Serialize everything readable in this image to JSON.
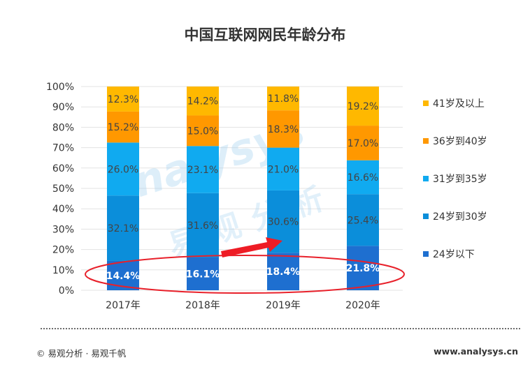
{
  "title": "中国互联网网民年龄分布",
  "footer": {
    "left": "© 易观分析 · 易观千帆",
    "right": "www.analysys.cn"
  },
  "watermark": "analysys 易观分析",
  "colors": {
    "24岁以下": "#1E6FD0",
    "24岁到30岁": "#0B8EDA",
    "31岁到35岁": "#10AAF0",
    "36岁到40岁": "#FF9800",
    "41岁及以上": "#FFB800",
    "highlight_ellipse": "#E8202A",
    "arrow": "#EE1C25"
  },
  "chart_data": {
    "type": "bar",
    "stacked": true,
    "title": "中国互联网网民年龄分布",
    "categories": [
      "2017年",
      "2018年",
      "2019年",
      "2020年"
    ],
    "ylim": [
      0,
      100
    ],
    "yticks": [
      "0%",
      "10%",
      "20%",
      "30%",
      "40%",
      "50%",
      "60%",
      "70%",
      "80%",
      "90%",
      "100%"
    ],
    "grid": true,
    "legend_position": "right",
    "series": [
      {
        "name": "24岁以下",
        "values": [
          14.4,
          16.1,
          18.4,
          21.8
        ],
        "labels": [
          "14.4%",
          "16.1%",
          "18.4%",
          "21.8%"
        ]
      },
      {
        "name": "24岁到30岁",
        "values": [
          32.1,
          31.6,
          30.6,
          25.4
        ],
        "labels": [
          "32.1%",
          "31.6%",
          "30.6%",
          "25.4%"
        ]
      },
      {
        "name": "31岁到35岁",
        "values": [
          26.0,
          23.1,
          21.0,
          16.6
        ],
        "labels": [
          "26.0%",
          "23.1%",
          "21.0%",
          "16.6%"
        ]
      },
      {
        "name": "36岁到40岁",
        "values": [
          15.2,
          15.0,
          18.3,
          17.0
        ],
        "labels": [
          "15.2%",
          "15.0%",
          "18.3%",
          "17.0%"
        ]
      },
      {
        "name": "41岁及以上",
        "values": [
          12.3,
          14.2,
          11.8,
          19.2
        ],
        "labels": [
          "12.3%",
          "14.2%",
          "11.8%",
          "19.2%"
        ]
      }
    ],
    "annotations": {
      "highlight": "ellipse around 24岁以下 values",
      "arrow": "rising trend from 2018年 to 2019年"
    }
  }
}
